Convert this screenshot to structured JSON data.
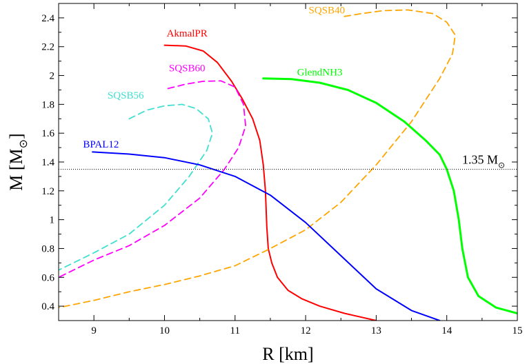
{
  "chart_data": {
    "type": "line",
    "xlabel": "R [km]",
    "ylabel": "M [M",
    "ylabel_subscript": "⊙",
    "ylabel_close": "]",
    "xlim": [
      8.5,
      15
    ],
    "ylim": [
      0.3,
      2.5
    ],
    "x_ticks": [
      9,
      10,
      11,
      12,
      13,
      14,
      15
    ],
    "y_ticks": [
      0.4,
      0.6,
      0.8,
      1,
      1.2,
      1.4,
      1.6,
      1.8,
      2,
      2.2,
      2.4
    ],
    "grid": false,
    "reference_line": {
      "y": 1.35,
      "label": "1.35 M",
      "label_subscript": "⊙",
      "style": "dotted"
    },
    "series": [
      {
        "name": "AkmalPR",
        "color": "#ff0000",
        "dash": "solid",
        "points": [
          [
            10.0,
            2.21
          ],
          [
            10.3,
            2.205
          ],
          [
            10.55,
            2.17
          ],
          [
            10.75,
            2.09
          ],
          [
            10.95,
            1.96
          ],
          [
            11.1,
            1.84
          ],
          [
            11.25,
            1.7
          ],
          [
            11.35,
            1.55
          ],
          [
            11.4,
            1.38
          ],
          [
            11.43,
            1.2
          ],
          [
            11.45,
            0.95
          ],
          [
            11.47,
            0.8
          ],
          [
            11.52,
            0.7
          ],
          [
            11.6,
            0.6
          ],
          [
            11.75,
            0.51
          ],
          [
            11.95,
            0.45
          ],
          [
            12.2,
            0.4
          ],
          [
            12.55,
            0.35
          ],
          [
            13.0,
            0.3
          ]
        ]
      },
      {
        "name": "SQSB60",
        "color": "#ff00ff",
        "dash": "dashed",
        "points": [
          [
            10.05,
            1.91
          ],
          [
            10.3,
            1.94
          ],
          [
            10.55,
            1.96
          ],
          [
            10.8,
            1.963
          ],
          [
            11.0,
            1.92
          ],
          [
            11.12,
            1.8
          ],
          [
            11.15,
            1.65
          ],
          [
            11.05,
            1.5
          ],
          [
            10.85,
            1.35
          ],
          [
            10.5,
            1.15
          ],
          [
            10.0,
            0.96
          ],
          [
            9.5,
            0.82
          ],
          [
            9.0,
            0.72
          ],
          [
            8.5,
            0.6
          ]
        ]
      },
      {
        "name": "SQSB56",
        "color": "#40e0d0",
        "dash": "dashed",
        "points": [
          [
            9.5,
            1.7
          ],
          [
            9.75,
            1.76
          ],
          [
            10.0,
            1.79
          ],
          [
            10.25,
            1.8
          ],
          [
            10.45,
            1.77
          ],
          [
            10.62,
            1.7
          ],
          [
            10.68,
            1.6
          ],
          [
            10.6,
            1.48
          ],
          [
            10.35,
            1.3
          ],
          [
            10.0,
            1.1
          ],
          [
            9.5,
            0.9
          ],
          [
            9.0,
            0.77
          ],
          [
            8.5,
            0.65
          ]
        ]
      },
      {
        "name": "SQSB40",
        "color": "#ffa500",
        "dash": "dashed",
        "points": [
          [
            12.55,
            2.41
          ],
          [
            12.8,
            2.43
          ],
          [
            13.1,
            2.45
          ],
          [
            13.45,
            2.455
          ],
          [
            13.8,
            2.43
          ],
          [
            14.0,
            2.37
          ],
          [
            14.12,
            2.28
          ],
          [
            14.08,
            2.15
          ],
          [
            13.9,
            1.98
          ],
          [
            13.5,
            1.68
          ],
          [
            13.0,
            1.38
          ],
          [
            12.5,
            1.12
          ],
          [
            12.0,
            0.93
          ],
          [
            11.5,
            0.8
          ],
          [
            11.0,
            0.68
          ],
          [
            10.5,
            0.61
          ],
          [
            10.0,
            0.55
          ],
          [
            9.5,
            0.5
          ],
          [
            9.0,
            0.44
          ],
          [
            8.5,
            0.39
          ]
        ]
      },
      {
        "name": "GlendNH3",
        "color": "#00ff00",
        "dash": "solid",
        "points": [
          [
            11.4,
            1.98
          ],
          [
            11.8,
            1.975
          ],
          [
            12.2,
            1.95
          ],
          [
            12.6,
            1.9
          ],
          [
            13.0,
            1.81
          ],
          [
            13.4,
            1.68
          ],
          [
            13.7,
            1.55
          ],
          [
            13.9,
            1.45
          ],
          [
            14.0,
            1.35
          ],
          [
            14.1,
            1.2
          ],
          [
            14.17,
            1.0
          ],
          [
            14.22,
            0.8
          ],
          [
            14.3,
            0.6
          ],
          [
            14.45,
            0.47
          ],
          [
            14.7,
            0.39
          ],
          [
            15.0,
            0.35
          ]
        ]
      },
      {
        "name": "BPAL12",
        "color": "#0000ff",
        "dash": "solid",
        "points": [
          [
            8.98,
            1.47
          ],
          [
            9.5,
            1.455
          ],
          [
            10.0,
            1.43
          ],
          [
            10.5,
            1.38
          ],
          [
            11.0,
            1.3
          ],
          [
            11.5,
            1.17
          ],
          [
            12.0,
            0.98
          ],
          [
            12.5,
            0.75
          ],
          [
            13.0,
            0.52
          ],
          [
            13.5,
            0.37
          ],
          [
            13.9,
            0.3
          ]
        ]
      }
    ],
    "labels": [
      {
        "name": "AkmalPR",
        "text": "AkmalPR",
        "color": "#ff0000",
        "at": [
          10.32,
          2.27
        ]
      },
      {
        "name": "SQSB60",
        "text": "SQSB60",
        "color": "#ff00ff",
        "at": [
          10.32,
          2.03
        ]
      },
      {
        "name": "SQSB56",
        "text": "SQSB56",
        "color": "#40e0d0",
        "at": [
          9.45,
          1.84
        ]
      },
      {
        "name": "SQSB40",
        "text": "SQSB40",
        "color": "#ffa500",
        "at": [
          12.3,
          2.43
        ]
      },
      {
        "name": "GlendNH3",
        "text": "GlendNH3",
        "color": "#00ff00",
        "at": [
          12.2,
          2.0
        ]
      },
      {
        "name": "BPAL12",
        "text": "BPAL12",
        "color": "#0000ff",
        "at": [
          9.1,
          1.5
        ]
      }
    ]
  }
}
